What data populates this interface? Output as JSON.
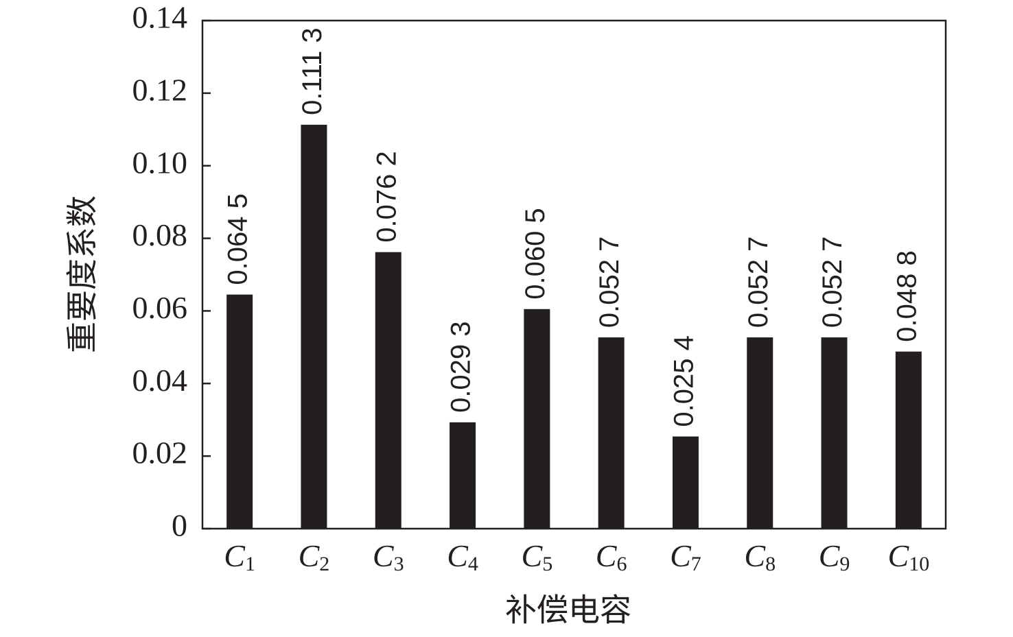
{
  "chart_data": {
    "type": "bar",
    "x_label": "补偿电容",
    "y_label": "重要度系数",
    "categories": [
      "C1",
      "C2",
      "C3",
      "C4",
      "C5",
      "C6",
      "C7",
      "C8",
      "C9",
      "C10"
    ],
    "values": [
      0.0645,
      0.1113,
      0.0762,
      0.0293,
      0.0605,
      0.0527,
      0.0254,
      0.0527,
      0.0527,
      0.0488
    ],
    "value_labels": [
      "0.064 5",
      "0.111 3",
      "0.076 2",
      "0.029 3",
      "0.060 5",
      "0.052 7",
      "0.025 4",
      "0.052 7",
      "0.052 7",
      "0.048 8"
    ],
    "color": "#231f20",
    "ylim": [
      0,
      0.14
    ],
    "yticks": [
      0,
      0.02,
      0.04,
      0.06,
      0.08,
      {
        "value": 0.1,
        "label": "0.10"
      },
      0.12,
      0.14
    ],
    "grid": false
  }
}
